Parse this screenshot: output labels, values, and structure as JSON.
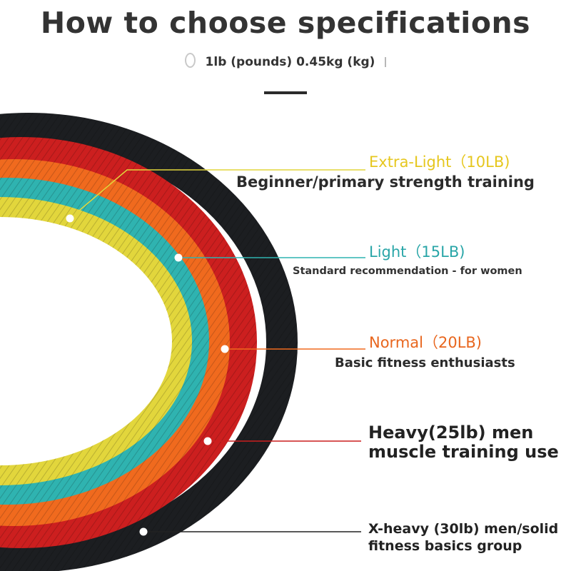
{
  "header": {
    "title": "How to choose specifications",
    "subtitle": "1lb (pounds) 0.45kg (kg)"
  },
  "bands": [
    {
      "name": "Extra-Light（10LB)",
      "description": "Beginner/primary strength training",
      "color": "#e2d63c",
      "label_color": "#e6c71f"
    },
    {
      "name": "Light（15LB)",
      "description": "Standard recommendation - for women",
      "color": "#2fb3b0",
      "label_color": "#2aa6a8"
    },
    {
      "name": "Normal（20LB)",
      "description": "Basic fitness enthusiasts",
      "color": "#f06a1e",
      "label_color": "#e8661e"
    },
    {
      "name": "",
      "description_line1": "Heavy(25lb) men",
      "description_line2": "muscle training use",
      "color": "#cc1f1f",
      "label_color": "#c0201f"
    },
    {
      "name": "",
      "description_line1": "X-heavy (30lb) men/solid",
      "description_line2": "fitness basics group",
      "color": "#1c1e21",
      "label_color": "#222222"
    }
  ]
}
